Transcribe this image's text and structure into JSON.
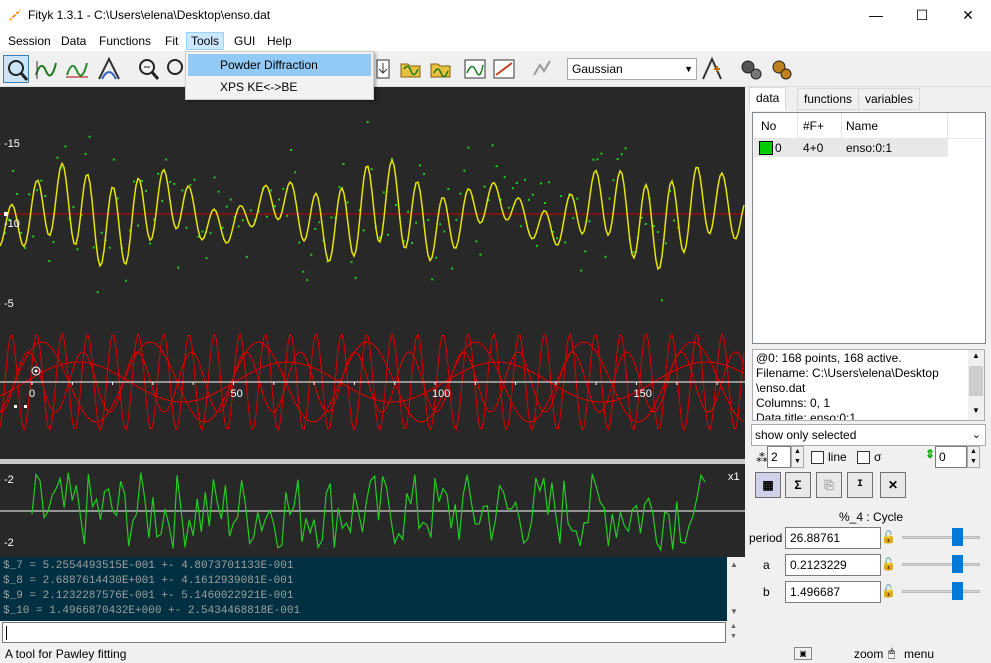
{
  "window": {
    "title": "Fityk 1.3.1 - C:\\Users\\elena\\Desktop\\enso.dat"
  },
  "menubar": {
    "items": [
      "Session",
      "Data",
      "Functions",
      "Fit",
      "Tools",
      "GUI",
      "Help"
    ],
    "active": "Tools"
  },
  "tools_menu": {
    "items": [
      "Powder Diffraction",
      "XPS KE<->BE"
    ],
    "highlighted": "Powder Diffraction"
  },
  "toolbar": {
    "function_type": "Gaussian"
  },
  "plot": {
    "main_y_ticks": [
      "15",
      "10",
      "5"
    ],
    "x_ticks": [
      "0",
      "50",
      "100",
      "150"
    ],
    "residual_y_ticks": [
      "2",
      "-2"
    ],
    "residual_scale": "x1",
    "colors": {
      "data_points": "#22cc22",
      "model": "#e6e600",
      "baseline": "#cc0000",
      "components": "#cc0000",
      "residual": "#22cc22",
      "background": "#282828"
    }
  },
  "output": {
    "lines": [
      "$_7 = 5.2554493515E-001 +- 4.8073701133E-001",
      "$_8 = 2.6887614430E+001 +- 4.1612939081E-001",
      "$_9 = 2.1232287576E-001 +- 5.1460022921E-001",
      "$_10 = 1.4966870432E+000 +- 2.5434468818E-001"
    ]
  },
  "command_input": {
    "value": ""
  },
  "statusbar": {
    "text": "A tool for Pawley fitting",
    "zoom_label": "zoom",
    "menu_label": "menu"
  },
  "sidebar": {
    "tabs": [
      "data",
      "functions",
      "variables"
    ],
    "active_tab": "data",
    "table": {
      "headers": [
        "No",
        "#F+",
        "Name"
      ],
      "rows": [
        {
          "no": "0",
          "f": "4+0",
          "name": "enso:0:1",
          "color": "#00cc00"
        }
      ]
    },
    "info": [
      "@0: 168 points, 168 active.",
      "Filename: C:\\Users\\elena\\Desktop",
      "\\enso.dat",
      "Columns: 0, 1",
      "Data title: enso:0:1"
    ],
    "filter": "show only selected",
    "point_size": "2",
    "line_label": "line",
    "sigma_label": "σ",
    "offset": "0",
    "func_title": "%_4 : Cycle",
    "params": [
      {
        "name": "period",
        "value": "26.88761",
        "level": 0.7
      },
      {
        "name": "a",
        "value": "0.2123229",
        "level": 0.7
      },
      {
        "name": "b",
        "value": "1.496687",
        "level": 0.7
      }
    ]
  }
}
